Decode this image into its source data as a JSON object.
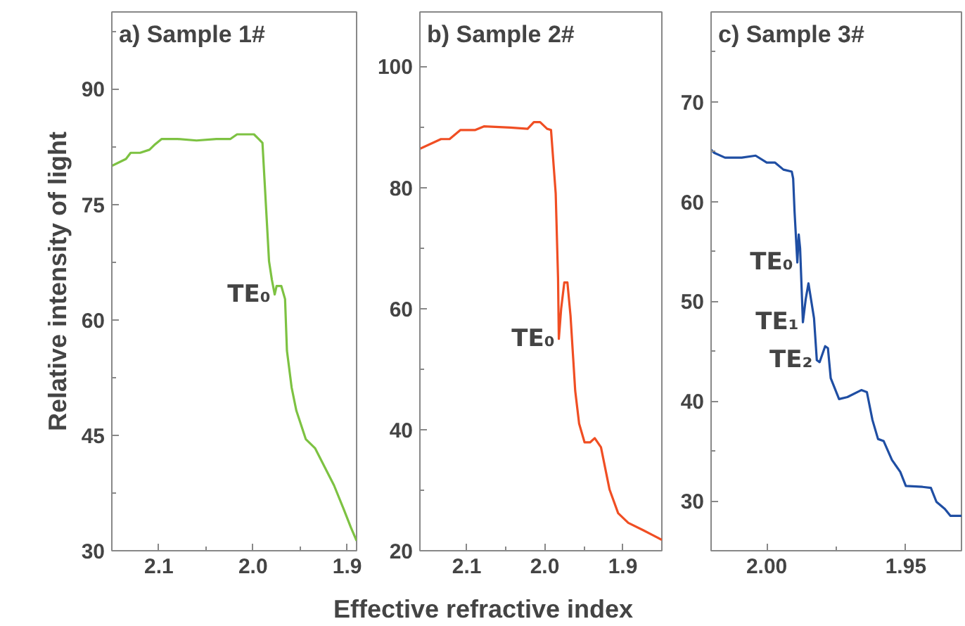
{
  "chart_data": [
    {
      "type": "line",
      "title": "a) Sample 1#",
      "ylabel": "Relative intensity of light",
      "xlim": [
        2.15,
        1.89
      ],
      "ylim": [
        30,
        100
      ],
      "xticks": [
        2.1,
        {
          "value": 2.05,
          "label": null
        },
        {
          "value": 2.0,
          "label": "2.0"
        },
        {
          "value": 1.95,
          "label": null
        },
        1.9
      ],
      "yticks": [
        30,
        {
          "value": 37.5,
          "label": null
        },
        45,
        {
          "value": 52.5,
          "label": null
        },
        60,
        {
          "value": 67.5,
          "label": null
        },
        75,
        {
          "value": 82.5,
          "label": null
        },
        90,
        {
          "value": 97.5,
          "label": null
        }
      ],
      "grid": false,
      "annotations": [
        {
          "text": "TE₀",
          "x": 1.977,
          "y": 63.3
        }
      ],
      "series": [
        {
          "color": "#7dc242",
          "x": [
            2.15,
            2.135,
            2.13,
            2.12,
            2.11,
            2.105,
            2.097,
            2.08,
            2.06,
            2.039,
            2.024,
            2.017,
            1.999,
            1.994,
            1.99,
            1.986,
            1.983,
            1.98,
            1.977,
            1.975,
            1.97,
            1.966,
            1.964,
            1.959,
            1.954,
            1.944,
            1.934,
            1.924,
            1.914,
            1.904,
            1.896,
            1.89
          ],
          "values": [
            80.0,
            80.9,
            81.7,
            81.7,
            82.1,
            82.7,
            83.5,
            83.5,
            83.3,
            83.5,
            83.5,
            84.1,
            84.1,
            83.5,
            83.0,
            74.2,
            67.6,
            65.2,
            63.3,
            64.4,
            64.4,
            62.7,
            56.0,
            51.2,
            48.2,
            44.5,
            43.3,
            40.9,
            38.5,
            35.5,
            33.0,
            31.3
          ]
        }
      ]
    },
    {
      "type": "line",
      "title": "b) Sample 2#",
      "xlabel": "Effective refractive index",
      "xlim": [
        2.16,
        1.85
      ],
      "ylim": [
        20,
        109
      ],
      "xticks": [
        2.1,
        {
          "value": 2.05,
          "label": null
        },
        {
          "value": 2.0,
          "label": "2.0"
        },
        {
          "value": 1.95,
          "label": null
        },
        1.9
      ],
      "yticks": [
        20,
        {
          "value": 30,
          "label": null
        },
        40,
        {
          "value": 50,
          "label": null
        },
        60,
        {
          "value": 70,
          "label": null
        },
        80,
        {
          "value": 90,
          "label": null
        },
        100
      ],
      "grid": false,
      "annotations": [
        {
          "text": "TE₀",
          "x": 1.982,
          "y": 55.0
        }
      ],
      "series": [
        {
          "color": "#f04e23",
          "x": [
            2.16,
            2.133,
            2.122,
            2.108,
            2.089,
            2.078,
            2.044,
            2.022,
            2.014,
            2.006,
            1.997,
            1.992,
            1.986,
            1.983,
            1.982,
            1.979,
            1.975,
            1.971,
            1.967,
            1.961,
            1.956,
            1.949,
            1.942,
            1.936,
            1.928,
            1.917,
            1.906,
            1.893,
            1.874,
            1.862,
            1.85
          ],
          "values": [
            86.4,
            88.0,
            88.0,
            89.5,
            89.5,
            90.1,
            89.9,
            89.7,
            90.8,
            90.8,
            89.7,
            89.5,
            79.0,
            65.0,
            55.0,
            60.0,
            64.3,
            64.3,
            58.8,
            46.4,
            41.0,
            37.9,
            37.9,
            38.6,
            37.1,
            30.1,
            26.2,
            24.6,
            23.4,
            22.6,
            21.8
          ]
        }
      ]
    },
    {
      "type": "line",
      "title": "c) Sample 3#",
      "xlim": [
        2.02,
        1.93
      ],
      "ylim": [
        25,
        79
      ],
      "xticks": [
        {
          "value": 2.0,
          "label": "2.00"
        },
        {
          "value": 1.975,
          "label": null
        },
        1.95
      ],
      "yticks": [
        30,
        {
          "value": 35,
          "label": null
        },
        40,
        {
          "value": 45,
          "label": null
        },
        50,
        {
          "value": 55,
          "label": null
        },
        60,
        {
          "value": 65,
          "label": null
        },
        70,
        {
          "value": 75,
          "label": null
        }
      ],
      "grid": false,
      "annotations": [
        {
          "text": "TE₀",
          "x": 1.989,
          "y": 53.9
        },
        {
          "text": "TE₁",
          "x": 1.987,
          "y": 47.9
        },
        {
          "text": "TE₂",
          "x": 1.982,
          "y": 44.1
        }
      ],
      "series": [
        {
          "color": "#1f4ea3",
          "x": [
            2.02,
            2.019,
            2.015,
            2.009,
            2.004,
            2.0,
            1.997,
            1.994,
            1.991,
            1.9905,
            1.99,
            1.989,
            1.9885,
            1.988,
            1.987,
            1.986,
            1.985,
            1.983,
            1.982,
            1.981,
            1.979,
            1.978,
            1.977,
            1.974,
            1.971,
            1.966,
            1.964,
            1.962,
            1.96,
            1.958,
            1.955,
            1.952,
            1.95,
            1.944,
            1.941,
            1.939,
            1.936,
            1.934,
            1.93
          ],
          "values": [
            65.2,
            64.9,
            64.4,
            64.4,
            64.6,
            63.9,
            63.9,
            63.2,
            63.0,
            62.3,
            59.0,
            53.9,
            56.7,
            55.3,
            47.9,
            50.2,
            51.8,
            48.3,
            44.1,
            43.9,
            45.5,
            45.3,
            42.3,
            40.2,
            40.4,
            41.1,
            40.9,
            38.1,
            36.2,
            36.0,
            34.1,
            32.9,
            31.5,
            31.4,
            31.3,
            29.9,
            29.2,
            28.5,
            28.5
          ]
        }
      ]
    }
  ]
}
